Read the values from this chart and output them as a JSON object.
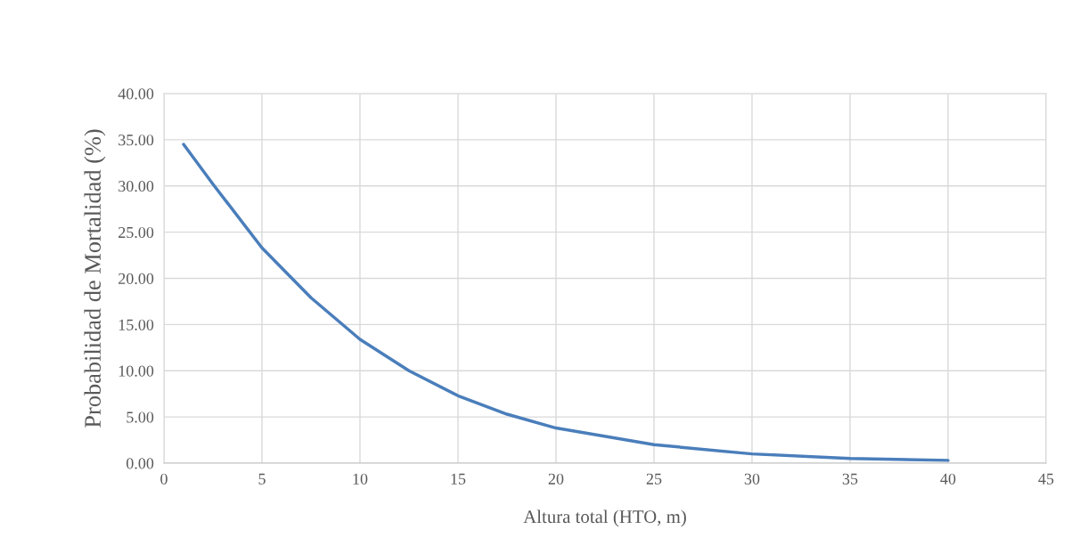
{
  "chart_data": {
    "type": "line",
    "xlabel": "Altura total (HTO, m)",
    "ylabel": "Probabilidad de Mortalidad (%)",
    "x": [
      1,
      2.5,
      5,
      7.5,
      10,
      12.5,
      15,
      17.5,
      20,
      25,
      30,
      35,
      40
    ],
    "series": [
      {
        "color": "#4a7ebb",
        "values": [
          34.5,
          30.2,
          23.3,
          17.9,
          13.4,
          10.0,
          7.3,
          5.3,
          3.8,
          2.0,
          1.0,
          0.5,
          0.3
        ]
      }
    ],
    "xlim": [
      0,
      45
    ],
    "xticks": [
      0,
      5,
      10,
      15,
      20,
      25,
      30,
      35,
      40,
      45
    ],
    "ylim": [
      0,
      40
    ],
    "yticks": [
      {
        "value": 0,
        "label": "0.00"
      },
      {
        "value": 5,
        "label": "5.00"
      },
      {
        "value": 10,
        "label": "10.00"
      },
      {
        "value": 15,
        "label": "15.00"
      },
      {
        "value": 20,
        "label": "20.00"
      },
      {
        "value": 25,
        "label": "25.00"
      },
      {
        "value": 30,
        "label": "30.00"
      },
      {
        "value": 35,
        "label": "35.00"
      },
      {
        "value": 40,
        "label": "40.00"
      }
    ],
    "grid": true,
    "marker": "none",
    "line_style": "solid"
  }
}
